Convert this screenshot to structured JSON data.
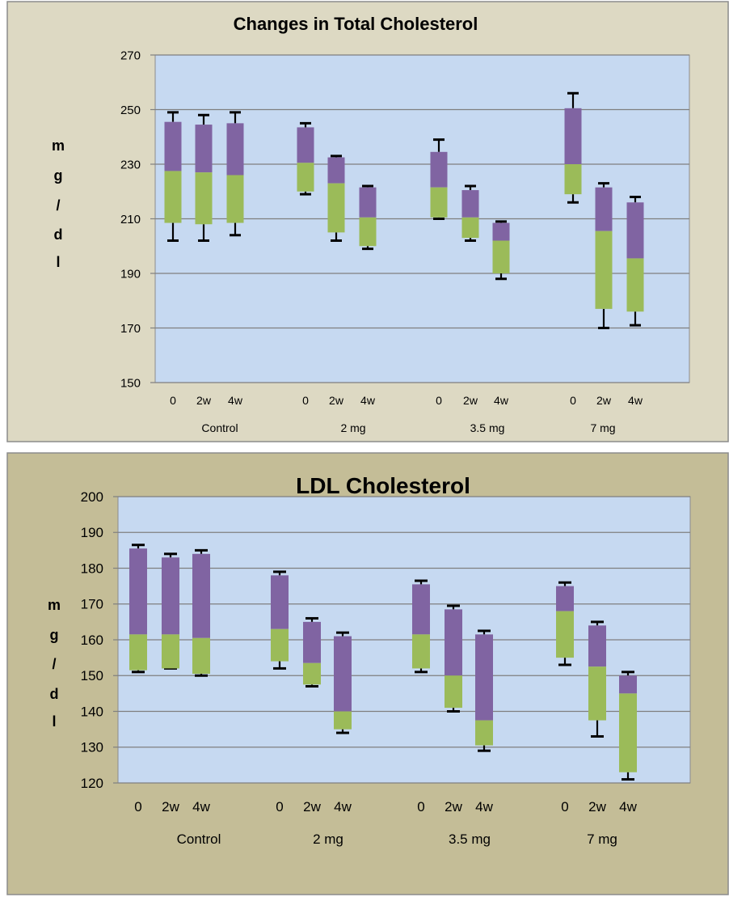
{
  "chart_data": [
    {
      "type": "box",
      "title": "Changes in Total Cholesterol",
      "ylabel": "m g / d l",
      "ylabel_chars": [
        "m",
        "g",
        "/",
        "d",
        "l"
      ],
      "ylim": [
        150,
        270
      ],
      "ytick_step": 20,
      "yticks": [
        "150",
        "170",
        "190",
        "210",
        "230",
        "250",
        "270"
      ],
      "grid": true,
      "groups": [
        "Control",
        "2 mg",
        "3.5 mg",
        "7 mg"
      ],
      "timepoints": [
        "0",
        "2w",
        "4w"
      ],
      "colors": {
        "upper_box": "#8064a2",
        "lower_box": "#9bbb59",
        "plot_bg": "#c6d9f1",
        "frame_bg": "#ddd9c3"
      },
      "boxes": [
        {
          "group": "Control",
          "time": "0",
          "wmin": 202,
          "q1": 208.5,
          "median": 227.5,
          "q3": 245.5,
          "wmax": 249
        },
        {
          "group": "Control",
          "time": "2w",
          "wmin": 202,
          "q1": 208,
          "median": 227,
          "q3": 244.5,
          "wmax": 248
        },
        {
          "group": "Control",
          "time": "4w",
          "wmin": 204,
          "q1": 208.5,
          "median": 226,
          "q3": 245,
          "wmax": 249
        },
        {
          "group": "2 mg",
          "time": "0",
          "wmin": 219,
          "q1": 220,
          "median": 230.5,
          "q3": 243.5,
          "wmax": 245
        },
        {
          "group": "2 mg",
          "time": "2w",
          "wmin": 202,
          "q1": 205,
          "median": 223,
          "q3": 232.5,
          "wmax": 233
        },
        {
          "group": "2 mg",
          "time": "4w",
          "wmin": 199,
          "q1": 200,
          "median": 210.5,
          "q3": 221.5,
          "wmax": 222
        },
        {
          "group": "3.5 mg",
          "time": "0",
          "wmin": 210,
          "q1": 210.5,
          "median": 221.5,
          "q3": 234.5,
          "wmax": 239
        },
        {
          "group": "3.5 mg",
          "time": "2w",
          "wmin": 202,
          "q1": 203,
          "median": 210.5,
          "q3": 220.5,
          "wmax": 222
        },
        {
          "group": "3.5 mg",
          "time": "4w",
          "wmin": 188,
          "q1": 190,
          "median": 202,
          "q3": 208.5,
          "wmax": 209
        },
        {
          "group": "7 mg",
          "time": "0",
          "wmin": 216,
          "q1": 219,
          "median": 230,
          "q3": 250.5,
          "wmax": 256
        },
        {
          "group": "7 mg",
          "time": "2w",
          "wmin": 170,
          "q1": 177,
          "median": 205.5,
          "q3": 221.5,
          "wmax": 223
        },
        {
          "group": "7 mg",
          "time": "4w",
          "wmin": 171,
          "q1": 176,
          "median": 195.5,
          "q3": 216,
          "wmax": 218
        }
      ]
    },
    {
      "type": "box",
      "title": "LDL Cholesterol",
      "ylabel": "m g / d l",
      "ylabel_chars": [
        "m",
        "g",
        "/",
        "d",
        "l"
      ],
      "ylim": [
        120,
        200
      ],
      "ytick_step": 10,
      "yticks": [
        "120",
        "130",
        "140",
        "150",
        "160",
        "170",
        "180",
        "190",
        "200"
      ],
      "grid": true,
      "groups": [
        "Control",
        "2 mg",
        "3.5 mg",
        "7 mg"
      ],
      "timepoints": [
        "0",
        "2w",
        "4w"
      ],
      "colors": {
        "upper_box": "#8064a2",
        "lower_box": "#9bbb59",
        "plot_bg": "#c6d9f1",
        "frame_bg": "#c4bd97"
      },
      "boxes": [
        {
          "group": "Control",
          "time": "0",
          "wmin": 151,
          "q1": 151.5,
          "median": 161.5,
          "q3": 185.5,
          "wmax": 186.5
        },
        {
          "group": "Control",
          "time": "2w",
          "wmin": 152,
          "q1": 152,
          "median": 161.5,
          "q3": 183,
          "wmax": 184
        },
        {
          "group": "Control",
          "time": "4w",
          "wmin": 150,
          "q1": 150.5,
          "median": 160.5,
          "q3": 184,
          "wmax": 185
        },
        {
          "group": "2 mg",
          "time": "0",
          "wmin": 152,
          "q1": 154,
          "median": 163,
          "q3": 178,
          "wmax": 179
        },
        {
          "group": "2 mg",
          "time": "2w",
          "wmin": 147,
          "q1": 147.5,
          "median": 153.5,
          "q3": 165,
          "wmax": 166
        },
        {
          "group": "2 mg",
          "time": "4w",
          "wmin": 134,
          "q1": 135,
          "median": 140,
          "q3": 161,
          "wmax": 162
        },
        {
          "group": "3.5 mg",
          "time": "0",
          "wmin": 151,
          "q1": 152,
          "median": 161.5,
          "q3": 175.5,
          "wmax": 176.5
        },
        {
          "group": "3.5 mg",
          "time": "2w",
          "wmin": 140,
          "q1": 141,
          "median": 150,
          "q3": 168.5,
          "wmax": 169.5
        },
        {
          "group": "3.5 mg",
          "time": "4w",
          "wmin": 129,
          "q1": 130.5,
          "median": 137.5,
          "q3": 161.5,
          "wmax": 162.5
        },
        {
          "group": "7 mg",
          "time": "0",
          "wmin": 153,
          "q1": 155,
          "median": 168,
          "q3": 175,
          "wmax": 176
        },
        {
          "group": "7 mg",
          "time": "2w",
          "wmin": 133,
          "q1": 137.5,
          "median": 152.5,
          "q3": 164,
          "wmax": 165
        },
        {
          "group": "7 mg",
          "time": "4w",
          "wmin": 121,
          "q1": 123,
          "median": 145,
          "q3": 150,
          "wmax": 151
        }
      ]
    }
  ]
}
